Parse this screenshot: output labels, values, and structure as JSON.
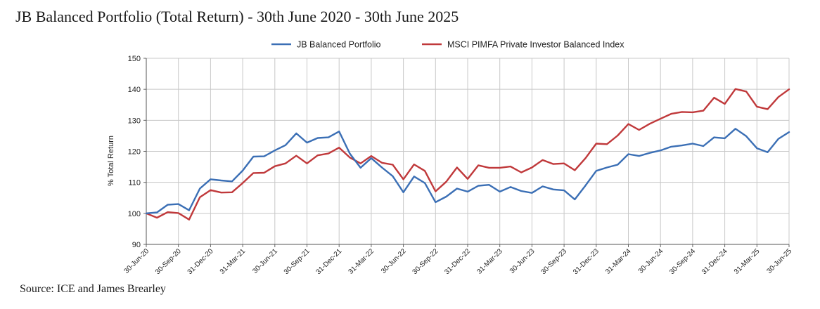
{
  "chart_data": {
    "type": "line",
    "title": "JB Balanced Portfolio (Total Return) - 30th June 2020 - 30th June 2025",
    "xlabel": "",
    "ylabel": "% Total Return",
    "ylim": [
      90,
      150
    ],
    "yticks": [
      90,
      100,
      110,
      120,
      130,
      140,
      150
    ],
    "grid": true,
    "legend_position": "top-center",
    "x_tick_labels": [
      "30-Jun-20",
      "30-Sep-20",
      "31-Dec-20",
      "31-Mar-21",
      "30-Jun-21",
      "30-Sep-21",
      "31-Dec-21",
      "31-Mar-22",
      "30-Jun-22",
      "30-Sep-22",
      "31-Dec-22",
      "31-Mar-23",
      "30-Jun-23",
      "30-Sep-23",
      "31-Dec-23",
      "31-Mar-24",
      "30-Jun-24",
      "30-Sep-24",
      "31-Dec-24",
      "31-Mar-25",
      "30-Jun-25"
    ],
    "x_points_per_tick": 3,
    "series": [
      {
        "name": "JB Balanced Portfolio",
        "color": "#3b6fb5",
        "values": [
          100,
          100.3,
          102.8,
          103,
          101,
          108,
          111,
          110.6,
          110.3,
          113.8,
          118.3,
          118.4,
          120.3,
          122,
          125.8,
          122.8,
          124.3,
          124.5,
          126.4,
          119.3,
          114.7,
          117.8,
          114.8,
          112,
          106.8,
          111.9,
          109.8,
          103.6,
          105.4,
          108,
          107,
          108.9,
          109.2,
          107,
          108.5,
          107.2,
          106.6,
          108.7,
          107.7,
          107.4,
          104.5,
          109,
          113.7,
          114.8,
          115.7,
          119.1,
          118.5,
          119.5,
          120.3,
          121.5,
          121.9,
          122.5,
          121.7,
          124.5,
          124.2,
          127.3,
          124.9,
          121,
          119.7,
          124,
          126.2
        ]
      },
      {
        "name": "MSCI PIMFA Private Investor Balanced Index",
        "color": "#c0393b",
        "values": [
          100,
          98.6,
          100.4,
          100.1,
          98,
          105.2,
          107.5,
          106.7,
          106.8,
          109.8,
          113,
          113.1,
          115.2,
          116.1,
          118.6,
          116.1,
          118.7,
          119.3,
          121.2,
          118,
          116.1,
          118.5,
          116.3,
          115.7,
          111,
          115.8,
          113.7,
          107.1,
          110.2,
          114.8,
          111.1,
          115.5,
          114.7,
          114.7,
          115.1,
          113.2,
          114.8,
          117.2,
          115.9,
          116.1,
          113.9,
          117.8,
          122.5,
          122.3,
          125.1,
          128.8,
          126.9,
          128.9,
          130.5,
          132.1,
          132.7,
          132.6,
          133.1,
          137.3,
          135.3,
          140.1,
          139.3,
          134.4,
          133.6,
          137.5,
          140
        ]
      }
    ]
  },
  "footer": {
    "source": "Source: ICE and James Brearley"
  }
}
